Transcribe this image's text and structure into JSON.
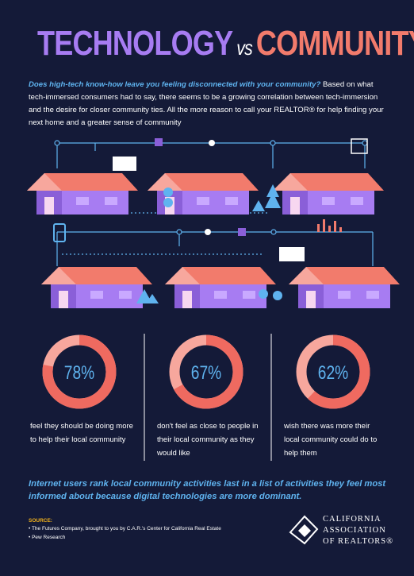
{
  "header": {
    "title_left": "TECHNOLOGY",
    "title_vs": "vs",
    "title_right": "COMMUNITY"
  },
  "intro": {
    "question": "Does high-tech know-how leave you feeling disconnected with your community?",
    "text": "Based on what tech-immersed consumers had to say, there seems to be a growing correlation between tech-immersion and the desire for closer community ties. All the more reason to call your REALTOR® for help finding your next home and a greater sense of community"
  },
  "stats": [
    {
      "value": 78,
      "value_label": "78%",
      "caption": "feel they should be doing more to help their local community"
    },
    {
      "value": 67,
      "value_label": "67%",
      "caption": "don't feel as close to people in their local community as they would like"
    },
    {
      "value": 62,
      "value_label": "62%",
      "caption": "wish there was more their local community could do to help them"
    }
  ],
  "footer": {
    "statement": "Internet users rank local community activities last in a list of activities they feel most informed about because digital technologies are more dominant.",
    "source_heading": "SOURCE:",
    "sources": [
      "• The Futures Company, brought to you by C.A.R.'s Center for California Real Estate",
      "• Pew Research"
    ],
    "logo": [
      "CALIFORNIA",
      "ASSOCIATION",
      "OF REALTORS®"
    ]
  }
}
